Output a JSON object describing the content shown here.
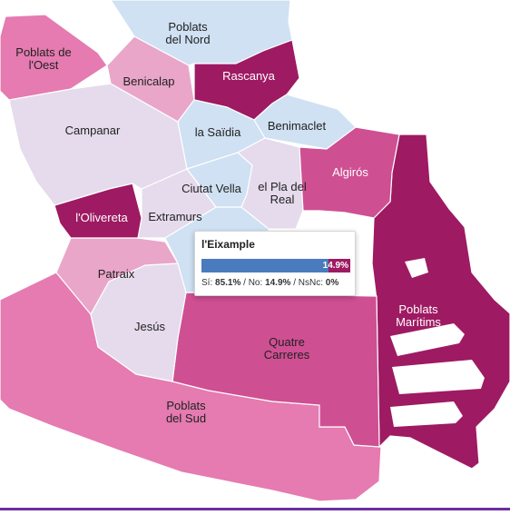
{
  "colors": {
    "light_blue": "#cfe1f3",
    "lavender": "#e5dbec",
    "light_pink": "#e9a6c9",
    "medium_pink": "#e57bb0",
    "strong_pink": "#cf4f93",
    "dark_magenta": "#9e1a62",
    "bar_si": "#4a7bbe",
    "bar_no": "#9e1a62"
  },
  "districts": [
    {
      "id": "poblats-del-nord",
      "label_lines": [
        "Poblats",
        "del Nord"
      ],
      "color": "light_blue",
      "text_color": "#222222"
    },
    {
      "id": "poblats-de-l-oest",
      "label_lines": [
        "Poblats de",
        "l'Oest"
      ],
      "color": "medium_pink",
      "text_color": "#222222"
    },
    {
      "id": "benicalap",
      "label_lines": [
        "Benicalap"
      ],
      "color": "light_pink",
      "text_color": "#222222"
    },
    {
      "id": "rascanya",
      "label_lines": [
        "Rascanya"
      ],
      "color": "dark_magenta",
      "text_color": "#ffffff"
    },
    {
      "id": "campanar",
      "label_lines": [
        "Campanar"
      ],
      "color": "lavender",
      "text_color": "#222222"
    },
    {
      "id": "la-saidia",
      "label_lines": [
        "la Saïdia"
      ],
      "color": "light_blue",
      "text_color": "#222222"
    },
    {
      "id": "benimaclet",
      "label_lines": [
        "Benimaclet"
      ],
      "color": "light_blue",
      "text_color": "#222222"
    },
    {
      "id": "algiros",
      "label_lines": [
        "Algirós"
      ],
      "color": "strong_pink",
      "text_color": "#ffffff"
    },
    {
      "id": "ciutat-vella",
      "label_lines": [
        "Ciutat Vella"
      ],
      "color": "light_blue",
      "text_color": "#222222"
    },
    {
      "id": "el-pla-del-real",
      "label_lines": [
        "el Pla del",
        "Real"
      ],
      "color": "lavender",
      "text_color": "#222222"
    },
    {
      "id": "l-olivereta",
      "label_lines": [
        "l'Olivereta"
      ],
      "color": "dark_magenta",
      "text_color": "#ffffff"
    },
    {
      "id": "extramurs",
      "label_lines": [
        "Extramurs"
      ],
      "color": "lavender",
      "text_color": "#222222"
    },
    {
      "id": "l-eixample",
      "label_lines": [],
      "color": "light_blue",
      "text_color": "#222222"
    },
    {
      "id": "patraix",
      "label_lines": [
        "Patraix"
      ],
      "color": "light_pink",
      "text_color": "#222222"
    },
    {
      "id": "jesus",
      "label_lines": [
        "Jesús"
      ],
      "color": "lavender",
      "text_color": "#222222"
    },
    {
      "id": "quatre-carreres",
      "label_lines": [
        "Quatre",
        "Carreres"
      ],
      "color": "strong_pink",
      "text_color": "#222222"
    },
    {
      "id": "poblats-maritims",
      "label_lines": [
        "Poblats",
        "Marítims"
      ],
      "color": "dark_magenta",
      "text_color": "#ffffff"
    },
    {
      "id": "poblats-del-sud",
      "label_lines": [
        "Poblats",
        "del Sud"
      ],
      "color": "medium_pink",
      "text_color": "#222222"
    }
  ],
  "tooltip": {
    "title": "l'Eixample",
    "si_value": 85.1,
    "no_value": 14.9,
    "bar_label": "14.9%",
    "si_label": "Sí:",
    "si_text": "85.1%",
    "no_label": "/ No:",
    "no_text": "14.9%",
    "nsnc_label": "/ NsNc:",
    "nsnc_text": "0%"
  }
}
